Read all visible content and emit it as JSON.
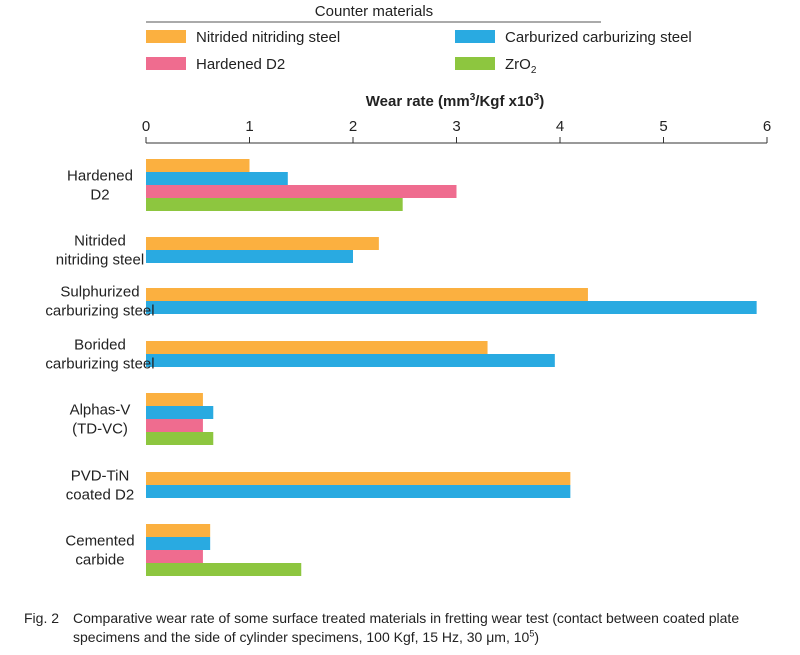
{
  "chart_data": {
    "type": "bar",
    "orientation": "horizontal",
    "title": "",
    "xlabel": "Wear rate (mm³/Kgf x10³)",
    "xlabel_parts": {
      "pre": "Wear rate (mm",
      "sup1": "3",
      "mid": "/Kgf x10",
      "sup2": "3",
      "post": ")"
    },
    "xlim": [
      0,
      6
    ],
    "xticks": [
      0,
      1,
      2,
      3,
      4,
      5,
      6
    ],
    "axis_position": "top",
    "grid": false,
    "legend_title": "Counter materials",
    "legend_position": "top",
    "series": [
      {
        "name": "Nitrided nitriding steel",
        "color": "#fbb040"
      },
      {
        "name": "Carburized carburizing steel",
        "color": "#29aae1"
      },
      {
        "name": "Hardened D2",
        "color": "#ef6c8f"
      },
      {
        "name": "ZrO",
        "name_sub": "2",
        "color": "#8dc63f"
      }
    ],
    "categories": [
      {
        "label": [
          "Hardened",
          "D2"
        ],
        "values": [
          1.0,
          1.37,
          3.0,
          2.48
        ]
      },
      {
        "label": [
          "Nitrided",
          "nitriding steel"
        ],
        "values": [
          2.25,
          2.0,
          null,
          null
        ]
      },
      {
        "label": [
          "Sulphurized",
          "carburizing steel"
        ],
        "values": [
          4.27,
          5.9,
          null,
          null
        ]
      },
      {
        "label": [
          "Borided",
          "carburizing steel"
        ],
        "values": [
          3.3,
          3.95,
          null,
          null
        ]
      },
      {
        "label": [
          "Alphas-V",
          "(TD-VC)"
        ],
        "values": [
          0.55,
          0.65,
          0.55,
          0.65
        ]
      },
      {
        "label": [
          "PVD-TiN",
          "coated D2"
        ],
        "values": [
          4.1,
          4.1,
          null,
          null
        ]
      },
      {
        "label": [
          "Cemented",
          "carbide"
        ],
        "values": [
          0.62,
          0.62,
          0.55,
          1.5
        ]
      }
    ]
  },
  "caption": {
    "fig": "Fig. 2",
    "text_before": "Comparative wear rate of some surface treated materials in fretting wear test (contact between coated plate specimens and the side of cylinder specimens, 100 Kgf, 15 Hz, 30 μm, 10",
    "sup": "5",
    "text_after": ")"
  }
}
